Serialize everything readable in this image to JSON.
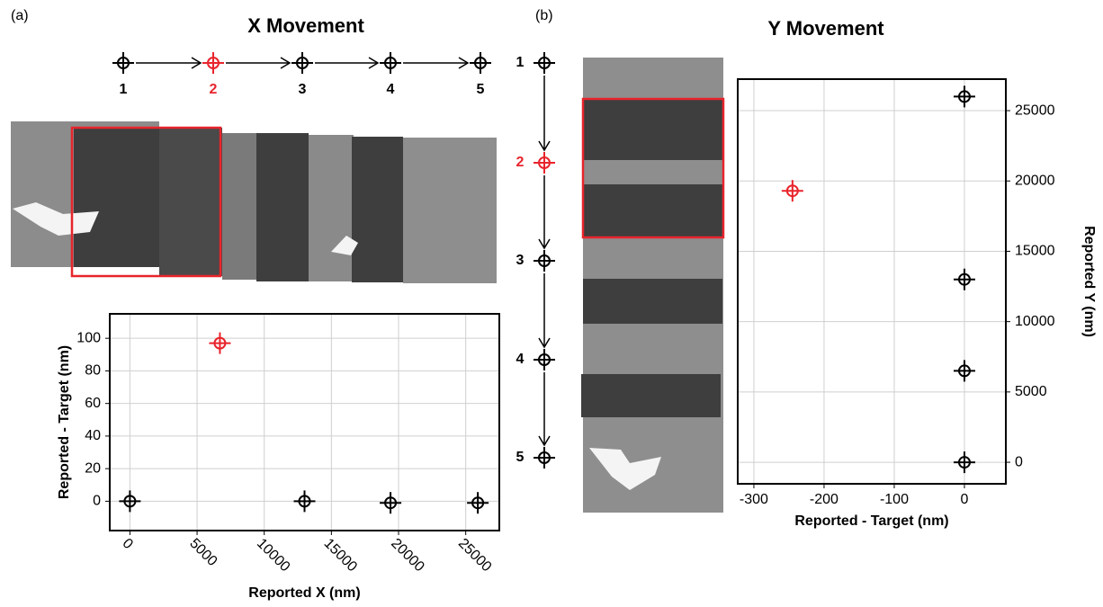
{
  "panels": {
    "labels": [
      "(a)",
      "(b)"
    ],
    "x_steps": [
      "1",
      "2",
      "3",
      "4",
      "5"
    ],
    "y_steps": [
      "1",
      "2",
      "3",
      "4",
      "5"
    ],
    "step_colors": [
      "#000000",
      "#e8242c",
      "#000000",
      "#000000",
      "#000000"
    ]
  },
  "chart_data": [
    {
      "type": "scatter",
      "title": "X Movement",
      "x_label": "Reported X (nm)",
      "y_label": "Reported - Target (nm)",
      "x": [
        0,
        6700,
        13000,
        19400,
        25900
      ],
      "values": [
        0,
        97,
        0,
        -1,
        -1
      ],
      "colors": [
        "#000000",
        "#e8242c",
        "#000000",
        "#000000",
        "#000000"
      ],
      "xlim": [
        -1500,
        27500
      ],
      "ylim": [
        -18,
        115
      ],
      "xticks": [
        0,
        5000,
        10000,
        15000,
        20000,
        25000
      ],
      "yticks": [
        0,
        20,
        40,
        60,
        80,
        100
      ],
      "grid": true
    },
    {
      "type": "scatter",
      "title": "Y Movement",
      "x_label": "Reported - Target (nm)",
      "y_label": "Reported Y (nm)",
      "x": [
        0,
        -245,
        0,
        0,
        0
      ],
      "values": [
        26000,
        19300,
        13000,
        6500,
        0
      ],
      "colors": [
        "#000000",
        "#e8242c",
        "#000000",
        "#000000",
        "#000000"
      ],
      "xlim": [
        -323,
        59
      ],
      "ylim": [
        -1530,
        27240
      ],
      "xticks": [
        -300,
        -200,
        -100,
        0
      ],
      "yticks": [
        0,
        5000,
        10000,
        15000,
        20000,
        25000
      ],
      "grid": true
    }
  ]
}
